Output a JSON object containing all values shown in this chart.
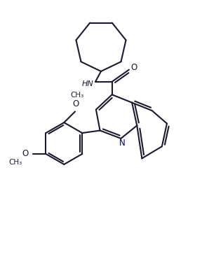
{
  "bg_color": "#ffffff",
  "line_color": "#1a1a2e",
  "bond_width": 1.5,
  "figsize": [
    2.88,
    3.73
  ],
  "dpi": 100,
  "xlim": [
    0,
    10
  ],
  "ylim": [
    0,
    13
  ]
}
